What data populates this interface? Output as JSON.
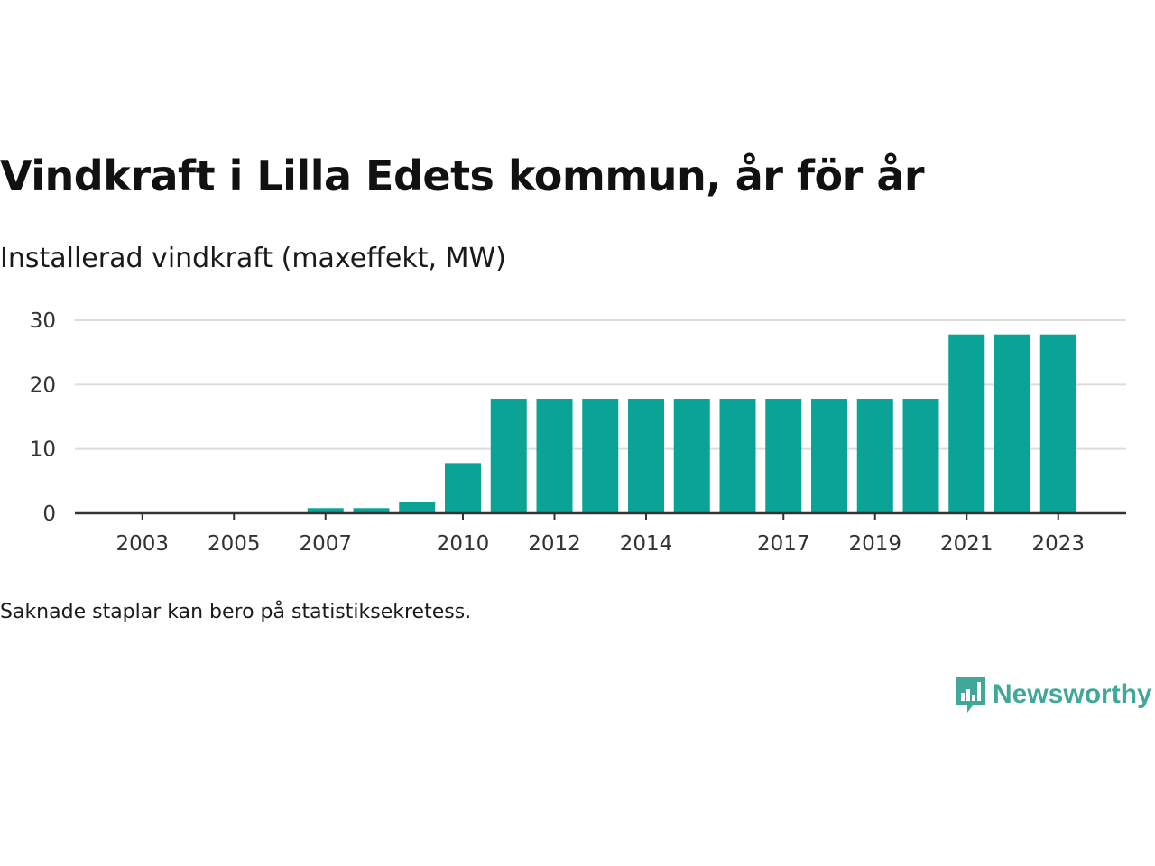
{
  "header": {
    "title": "Vindkraft i Lilla Edets kommun, år för år",
    "subtitle": "Installerad vindkraft (maxeffekt, MW)"
  },
  "footnote": "Saknade staplar kan bero på statistiksekretess.",
  "brand": {
    "name": "Newsworthy",
    "icon": "newsworthy-logo-icon",
    "color": "#3fa898"
  },
  "colors": {
    "bar": "#0aa396",
    "grid": "#dddddd",
    "axis": "#333333"
  },
  "chart_data": {
    "type": "bar",
    "title": "Vindkraft i Lilla Edets kommun, år för år",
    "subtitle": "Installerad vindkraft (maxeffekt, MW)",
    "categories": [
      2002,
      2003,
      2004,
      2005,
      2006,
      2007,
      2008,
      2009,
      2010,
      2011,
      2012,
      2013,
      2014,
      2015,
      2016,
      2017,
      2018,
      2019,
      2020,
      2021,
      2022,
      2023
    ],
    "values": [
      0,
      0,
      0,
      0,
      0,
      0.8,
      0.8,
      1.8,
      7.8,
      17.8,
      17.8,
      17.8,
      17.8,
      17.8,
      17.8,
      17.8,
      17.8,
      17.8,
      17.8,
      27.8,
      27.8,
      27.8
    ],
    "x_tick_labels": [
      "2003",
      "2005",
      "2007",
      "2010",
      "2012",
      "2014",
      "2017",
      "2019",
      "2021",
      "2023"
    ],
    "y_ticks": [
      0,
      10,
      20,
      30
    ],
    "ylim": [
      0,
      30
    ],
    "grid": true,
    "legend": "none"
  }
}
